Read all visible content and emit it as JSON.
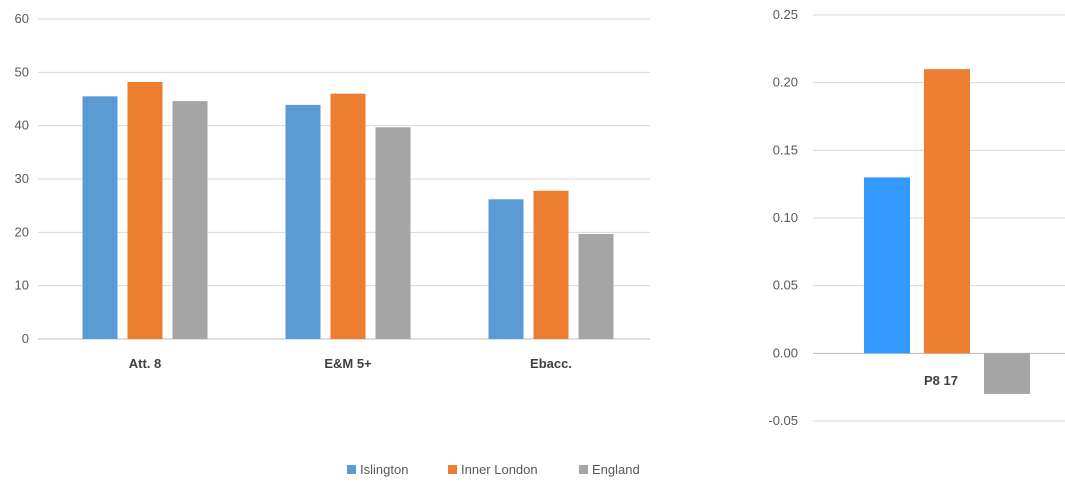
{
  "chart_data": [
    {
      "type": "bar",
      "categories": [
        "Att. 8",
        "E&M 5+",
        "Ebacc."
      ],
      "series": [
        {
          "name": "Islington",
          "values": [
            45.5,
            43.9,
            26.2
          ],
          "color": "#5B9BD5"
        },
        {
          "name": "Inner London",
          "values": [
            48.2,
            46.0,
            27.8
          ],
          "color": "#ED7D31"
        },
        {
          "name": "England",
          "values": [
            44.6,
            39.7,
            19.7
          ],
          "color": "#A5A5A5"
        }
      ],
      "ylim": [
        0,
        60
      ],
      "yticks": [
        "0",
        "10",
        "20",
        "30",
        "40",
        "50",
        "60"
      ],
      "grid": true,
      "legend": "bottom",
      "title": "",
      "xlabel": "",
      "ylabel": ""
    },
    {
      "type": "bar",
      "categories": [
        "P8 17"
      ],
      "series": [
        {
          "name": "Islington",
          "values": [
            0.13
          ],
          "color": "#3399FF"
        },
        {
          "name": "Inner London",
          "values": [
            0.21
          ],
          "color": "#ED7D31"
        },
        {
          "name": "England",
          "values": [
            -0.03
          ],
          "color": "#A5A5A5"
        }
      ],
      "ylim": [
        -0.05,
        0.25
      ],
      "yticks": [
        "-0.05",
        "0.00",
        "0.05",
        "0.10",
        "0.15",
        "0.20",
        "0.25"
      ],
      "grid": true,
      "title": "",
      "xlabel": "",
      "ylabel": ""
    }
  ]
}
